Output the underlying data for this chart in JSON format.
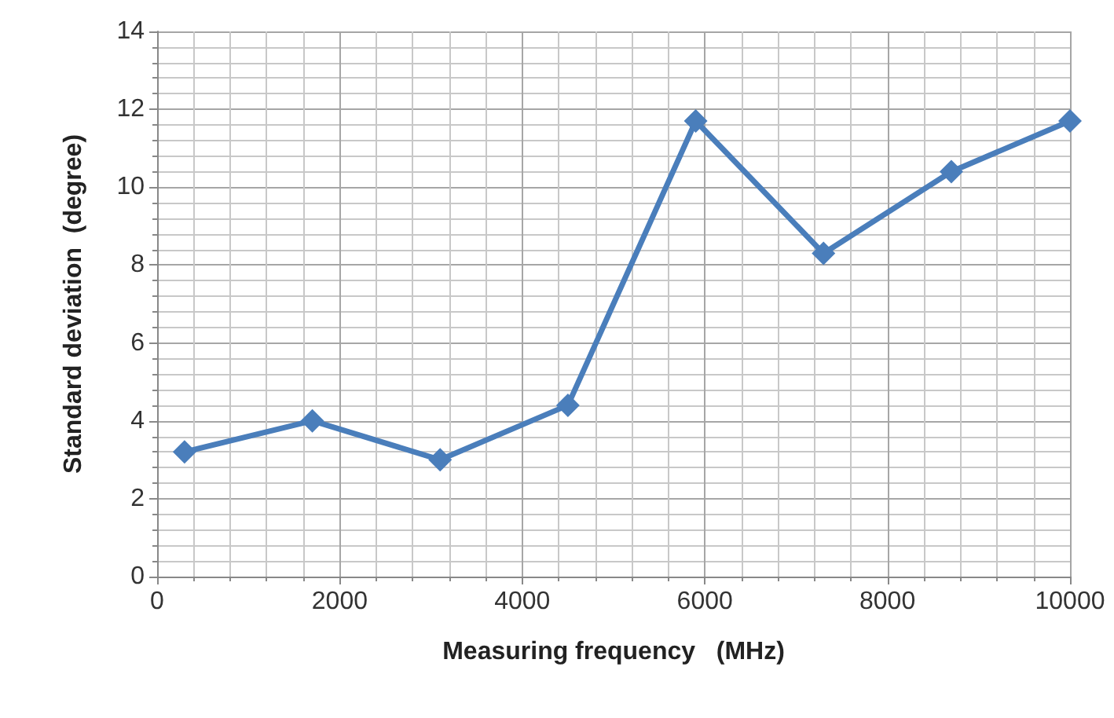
{
  "chart_data": {
    "type": "line",
    "xlabel": "Measuring frequency   (MHz)",
    "ylabel": "Standard deviation  (degree)",
    "x": [
      300,
      1700,
      3100,
      4500,
      5900,
      7300,
      8700,
      10000
    ],
    "series": [
      {
        "color": "#4a7ebb",
        "values": [
          3.2,
          4.0,
          3.0,
          4.4,
          11.7,
          8.3,
          10.4,
          11.7
        ]
      }
    ],
    "xlim": [
      0,
      10000
    ],
    "xticks": [
      0,
      2000,
      4000,
      6000,
      8000,
      10000
    ],
    "ylim": [
      0,
      14
    ],
    "yticks": [
      0,
      2,
      4,
      6,
      8,
      10,
      12,
      14
    ],
    "grid": true,
    "marker": "diamond",
    "line_style": "solid"
  }
}
